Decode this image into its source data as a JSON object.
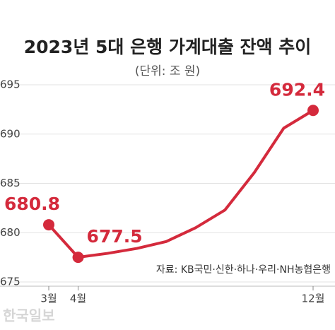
{
  "chart_data": {
    "type": "line",
    "title": "2023년 5대 은행 가계대출 잔액 추이",
    "subtitle": "(단위: 조 원)",
    "source": "자료: KB국민·신한·하나·우리·NH농협은행",
    "watermark": "한국일보",
    "categories": [
      "3월",
      "4월",
      null,
      null,
      null,
      null,
      null,
      null,
      null,
      "12월"
    ],
    "values": [
      680.8,
      677.5,
      677.9,
      678.4,
      679.1,
      680.5,
      682.3,
      686.1,
      690.6,
      692.4
    ],
    "value_labels": [
      "680.8",
      "677.5",
      null,
      null,
      null,
      null,
      null,
      null,
      null,
      "692.4"
    ],
    "color": "#d42a3c",
    "ylim": [
      675,
      695
    ],
    "yticks": [
      675,
      680,
      685,
      690,
      695
    ],
    "grid": true
  }
}
